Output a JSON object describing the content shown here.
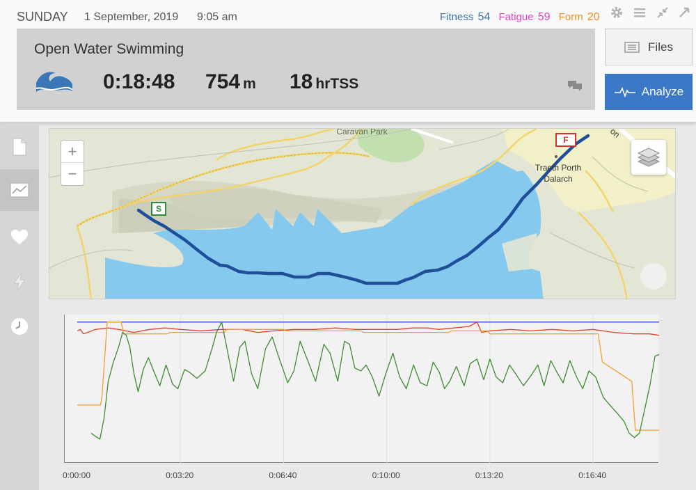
{
  "header": {
    "day": "SUNDAY",
    "date": "1 September, 2019",
    "time": "9:05 am",
    "metrics": {
      "fitness_label": "Fitness",
      "fitness_value": "54",
      "fatigue_label": "Fatigue",
      "fatigue_value": "59",
      "form_label": "Form",
      "form_value": "20"
    },
    "window_icons": [
      "gear-icon",
      "menu-icon",
      "collapse-icon",
      "expand-icon"
    ]
  },
  "summary": {
    "activity_name": "Open Water Swimming",
    "sport_icon": "wave-icon",
    "duration": "0:18:48",
    "distance_value": "754",
    "distance_unit": "m",
    "tss_value": "18",
    "tss_unit": "hrTSS"
  },
  "buttons": {
    "files_label": "Files",
    "analyze_label": "Analyze"
  },
  "sidebar": {
    "items": [
      {
        "icon": "document-icon"
      },
      {
        "icon": "chart-icon"
      },
      {
        "icon": "heart-icon"
      },
      {
        "icon": "lightning-icon"
      },
      {
        "icon": "clock-icon"
      }
    ]
  },
  "map": {
    "places": {
      "traeth": "Traeth Porth\nDalarch",
      "caravan": "Caravan Park",
      "lon": "on"
    },
    "start_flag": "S",
    "finish_flag": "F",
    "zoom_in": "+",
    "zoom_out": "−",
    "colors": {
      "route": "#1f4f99",
      "water": "#86c9ee",
      "start": "#2e8b3e",
      "finish": "#d9302a"
    }
  },
  "chart_data": {
    "type": "line",
    "x_ticks": [
      "0:00:00",
      "0:03:20",
      "0:06:40",
      "0:10:00",
      "0:13:20",
      "0:16:40"
    ],
    "x_tick_seconds": [
      0,
      200,
      400,
      600,
      800,
      1000
    ],
    "x_range_seconds": [
      0,
      1128
    ],
    "series": [
      {
        "color": "#2b3fd6",
        "values_frac": [
          [
            0,
            0.95
          ],
          [
            1128,
            0.95
          ]
        ]
      },
      {
        "color": "#e0412b",
        "values_frac": [
          [
            0,
            0.89
          ],
          [
            6,
            0.9
          ],
          [
            12,
            0.87
          ],
          [
            20,
            0.88
          ],
          [
            35,
            0.9
          ],
          [
            60,
            0.91
          ],
          [
            80,
            0.9
          ],
          [
            110,
            0.88
          ],
          [
            140,
            0.9
          ],
          [
            170,
            0.91
          ],
          [
            200,
            0.9
          ],
          [
            240,
            0.89
          ],
          [
            280,
            0.9
          ],
          [
            320,
            0.9
          ],
          [
            350,
            0.88
          ],
          [
            380,
            0.89
          ],
          [
            420,
            0.9
          ],
          [
            460,
            0.9
          ],
          [
            500,
            0.91
          ],
          [
            540,
            0.9
          ],
          [
            580,
            0.9
          ],
          [
            620,
            0.9
          ],
          [
            650,
            0.91
          ],
          [
            680,
            0.91
          ],
          [
            700,
            0.9
          ],
          [
            730,
            0.91
          ],
          [
            760,
            0.92
          ],
          [
            775,
            0.95
          ],
          [
            784,
            0.88
          ],
          [
            800,
            0.89
          ],
          [
            840,
            0.9
          ],
          [
            880,
            0.89
          ],
          [
            920,
            0.9
          ],
          [
            960,
            0.89
          ],
          [
            1000,
            0.9
          ],
          [
            1040,
            0.88
          ],
          [
            1080,
            0.87
          ],
          [
            1110,
            0.87
          ],
          [
            1128,
            0.86
          ]
        ]
      },
      {
        "color": "#f0a030",
        "values_frac": [
          [
            0,
            0.39
          ],
          [
            45,
            0.39
          ],
          [
            48,
            0.45
          ],
          [
            58,
            0.95
          ],
          [
            85,
            0.95
          ],
          [
            90,
            0.87
          ],
          [
            175,
            0.87
          ],
          [
            180,
            0.88
          ],
          [
            285,
            0.88
          ],
          [
            290,
            0.9
          ],
          [
            400,
            0.9
          ],
          [
            405,
            0.89
          ],
          [
            550,
            0.89
          ],
          [
            555,
            0.88
          ],
          [
            720,
            0.88
          ],
          [
            725,
            0.89
          ],
          [
            795,
            0.89
          ],
          [
            800,
            0.87
          ],
          [
            1010,
            0.87
          ],
          [
            1018,
            0.68
          ],
          [
            1075,
            0.55
          ],
          [
            1082,
            0.22
          ],
          [
            1128,
            0.22
          ]
        ]
      },
      {
        "color": "#3d8c2e",
        "values_frac": [
          [
            27,
            0.2
          ],
          [
            35,
            0.18
          ],
          [
            44,
            0.16
          ],
          [
            52,
            0.3
          ],
          [
            60,
            0.55
          ],
          [
            70,
            0.68
          ],
          [
            80,
            0.78
          ],
          [
            88,
            0.88
          ],
          [
            95,
            0.86
          ],
          [
            102,
            0.78
          ],
          [
            110,
            0.6
          ],
          [
            118,
            0.48
          ],
          [
            128,
            0.63
          ],
          [
            138,
            0.71
          ],
          [
            148,
            0.62
          ],
          [
            160,
            0.52
          ],
          [
            172,
            0.66
          ],
          [
            185,
            0.53
          ],
          [
            195,
            0.5
          ],
          [
            208,
            0.63
          ],
          [
            218,
            0.61
          ],
          [
            232,
            0.57
          ],
          [
            248,
            0.62
          ],
          [
            262,
            0.78
          ],
          [
            270,
            0.88
          ],
          [
            280,
            0.95
          ],
          [
            292,
            0.74
          ],
          [
            303,
            0.55
          ],
          [
            315,
            0.78
          ],
          [
            325,
            0.82
          ],
          [
            338,
            0.6
          ],
          [
            350,
            0.5
          ],
          [
            365,
            0.77
          ],
          [
            378,
            0.85
          ],
          [
            392,
            0.7
          ],
          [
            408,
            0.54
          ],
          [
            420,
            0.62
          ],
          [
            432,
            0.82
          ],
          [
            448,
            0.68
          ],
          [
            462,
            0.55
          ],
          [
            478,
            0.8
          ],
          [
            490,
            0.74
          ],
          [
            505,
            0.55
          ],
          [
            518,
            0.82
          ],
          [
            528,
            0.8
          ],
          [
            538,
            0.64
          ],
          [
            550,
            0.62
          ],
          [
            560,
            0.66
          ],
          [
            572,
            0.58
          ],
          [
            585,
            0.45
          ],
          [
            598,
            0.6
          ],
          [
            612,
            0.74
          ],
          [
            625,
            0.58
          ],
          [
            638,
            0.5
          ],
          [
            652,
            0.66
          ],
          [
            665,
            0.54
          ],
          [
            678,
            0.52
          ],
          [
            690,
            0.68
          ],
          [
            702,
            0.61
          ],
          [
            712,
            0.5
          ],
          [
            722,
            0.55
          ],
          [
            735,
            0.65
          ],
          [
            750,
            0.52
          ],
          [
            762,
            0.67
          ],
          [
            775,
            0.7
          ],
          [
            788,
            0.56
          ],
          [
            800,
            0.7
          ],
          [
            812,
            0.58
          ],
          [
            825,
            0.54
          ],
          [
            838,
            0.66
          ],
          [
            852,
            0.59
          ],
          [
            865,
            0.52
          ],
          [
            880,
            0.59
          ],
          [
            893,
            0.66
          ],
          [
            905,
            0.52
          ],
          [
            918,
            0.69
          ],
          [
            930,
            0.61
          ],
          [
            942,
            0.54
          ],
          [
            955,
            0.69
          ],
          [
            968,
            0.58
          ],
          [
            980,
            0.5
          ],
          [
            992,
            0.62
          ],
          [
            1005,
            0.58
          ],
          [
            1020,
            0.44
          ],
          [
            1035,
            0.38
          ],
          [
            1048,
            0.33
          ],
          [
            1060,
            0.28
          ],
          [
            1070,
            0.2
          ],
          [
            1080,
            0.17
          ],
          [
            1090,
            0.2
          ],
          [
            1100,
            0.36
          ],
          [
            1110,
            0.52
          ],
          [
            1120,
            0.72
          ],
          [
            1128,
            0.73
          ]
        ]
      }
    ]
  }
}
